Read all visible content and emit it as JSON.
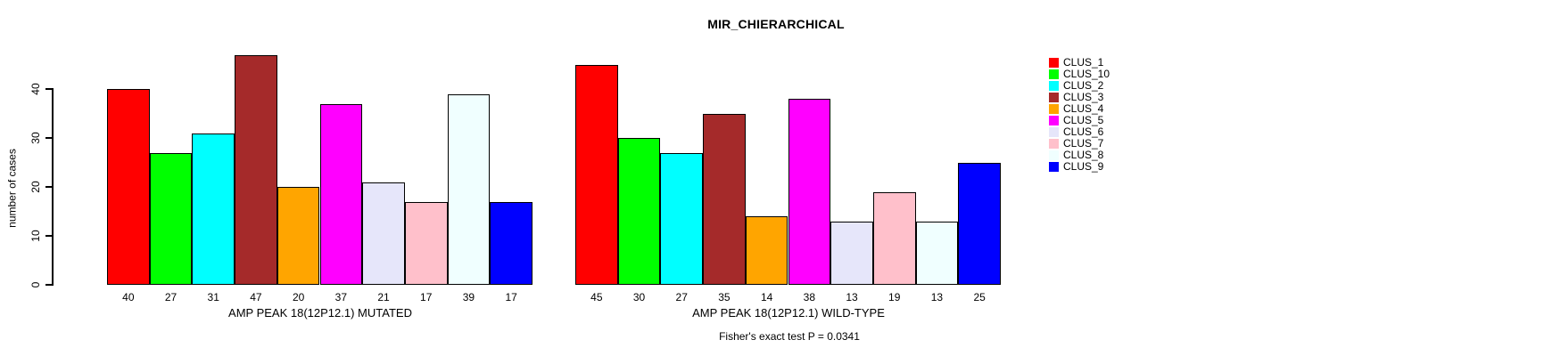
{
  "title": "MIR_CHIERARCHICAL",
  "footer": {
    "fisher_text": "Fisher's exact test P = 0.0341"
  },
  "y_axis": {
    "label": "number of cases",
    "ticks": [
      0,
      10,
      20,
      30,
      40
    ]
  },
  "legend": {
    "position": "right",
    "items": [
      {
        "label": "CLUS_1",
        "color": "#FF0000"
      },
      {
        "label": "CLUS_10",
        "color": "#00FF00"
      },
      {
        "label": "CLUS_2",
        "color": "#00FFFF"
      },
      {
        "label": "CLUS_3",
        "color": "#A52A2A"
      },
      {
        "label": "CLUS_4",
        "color": "#FFA500"
      },
      {
        "label": "CLUS_5",
        "color": "#FF00FF"
      },
      {
        "label": "CLUS_6",
        "color": "#E6E6FA"
      },
      {
        "label": "CLUS_7",
        "color": "#FFC0CB"
      },
      {
        "label": "CLUS_8",
        "color": "#F0FFFF"
      },
      {
        "label": "CLUS_9",
        "color": "#0000FF"
      }
    ]
  },
  "chart_data": [
    {
      "type": "bar",
      "title": "MIR_CHIERARCHICAL",
      "xlabel": "AMP PEAK 18(12P12.1) MUTATED",
      "ylabel": "number of cases",
      "ylim": [
        0,
        48
      ],
      "grid": false,
      "categories": [
        "CLUS_1",
        "CLUS_10",
        "CLUS_2",
        "CLUS_3",
        "CLUS_4",
        "CLUS_5",
        "CLUS_6",
        "CLUS_7",
        "CLUS_8",
        "CLUS_9"
      ],
      "values": [
        40,
        27,
        31,
        47,
        20,
        37,
        21,
        17,
        39,
        17
      ],
      "colors": [
        "#FF0000",
        "#00FF00",
        "#00FFFF",
        "#A52A2A",
        "#FFA500",
        "#FF00FF",
        "#E6E6FA",
        "#FFC0CB",
        "#F0FFFF",
        "#0000FF"
      ],
      "value_labels_below_bars": true,
      "annotation": "Fisher's exact test P = 0.0341"
    },
    {
      "type": "bar",
      "title": "MIR_CHIERARCHICAL",
      "xlabel": "AMP PEAK 18(12P12.1) WILD-TYPE",
      "ylabel": "number of cases",
      "ylim": [
        0,
        48
      ],
      "grid": false,
      "categories": [
        "CLUS_1",
        "CLUS_10",
        "CLUS_2",
        "CLUS_3",
        "CLUS_4",
        "CLUS_5",
        "CLUS_6",
        "CLUS_7",
        "CLUS_8",
        "CLUS_9"
      ],
      "values": [
        45,
        30,
        27,
        35,
        14,
        38,
        13,
        19,
        13,
        25
      ],
      "colors": [
        "#FF0000",
        "#00FF00",
        "#00FFFF",
        "#A52A2A",
        "#FFA500",
        "#FF00FF",
        "#E6E6FA",
        "#FFC0CB",
        "#F0FFFF",
        "#0000FF"
      ],
      "value_labels_below_bars": true,
      "annotation": "Fisher's exact test P = 0.0341"
    }
  ]
}
